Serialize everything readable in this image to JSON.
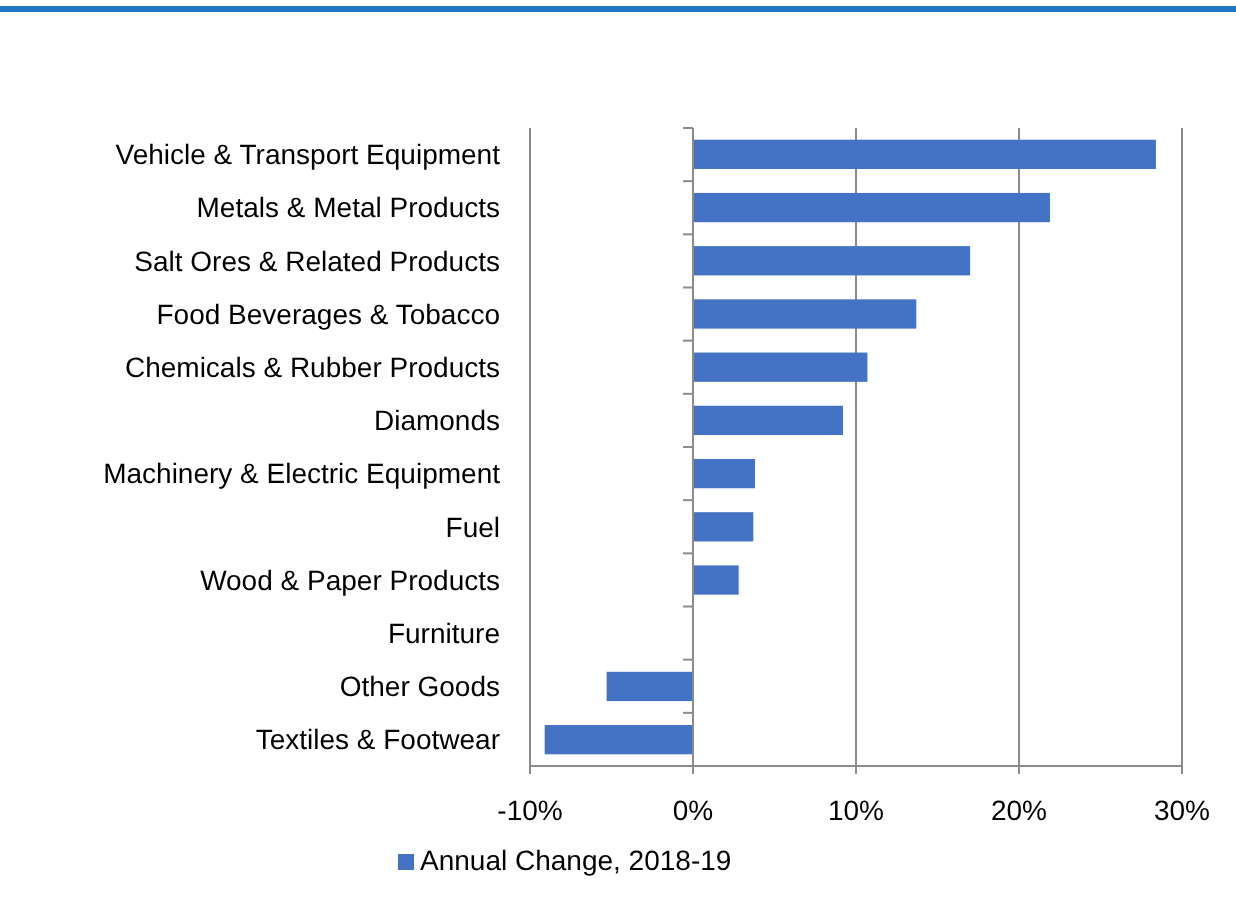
{
  "chart_data": {
    "type": "bar",
    "orientation": "horizontal",
    "categories": [
      "Vehicle & Transport Equipment",
      "Metals & Metal Products",
      "Salt Ores & Related Products ",
      "Food Beverages & Tobacco",
      "Chemicals & Rubber Products ",
      "Diamonds",
      "Machinery & Electric Equipment",
      "Fuel",
      "Wood & Paper Products",
      "Furniture",
      "Other Goods",
      "Textiles & Footwear"
    ],
    "series": [
      {
        "name": "Annual Change, 2018-19",
        "color": "#4472c4",
        "values": [
          28.4,
          21.9,
          17.0,
          13.7,
          10.7,
          9.2,
          3.8,
          3.7,
          2.8,
          0,
          -5.3,
          -9.1
        ]
      }
    ],
    "xlim": [
      -10,
      30
    ],
    "xticks": [
      {
        "value": -10,
        "label": "-10%"
      },
      {
        "value": 0,
        "label": "0%"
      },
      {
        "value": 10,
        "label": "10%"
      },
      {
        "value": 20,
        "label": "20%"
      },
      {
        "value": 30,
        "label": "30%"
      }
    ],
    "grid": "x",
    "legend": "bottom"
  }
}
